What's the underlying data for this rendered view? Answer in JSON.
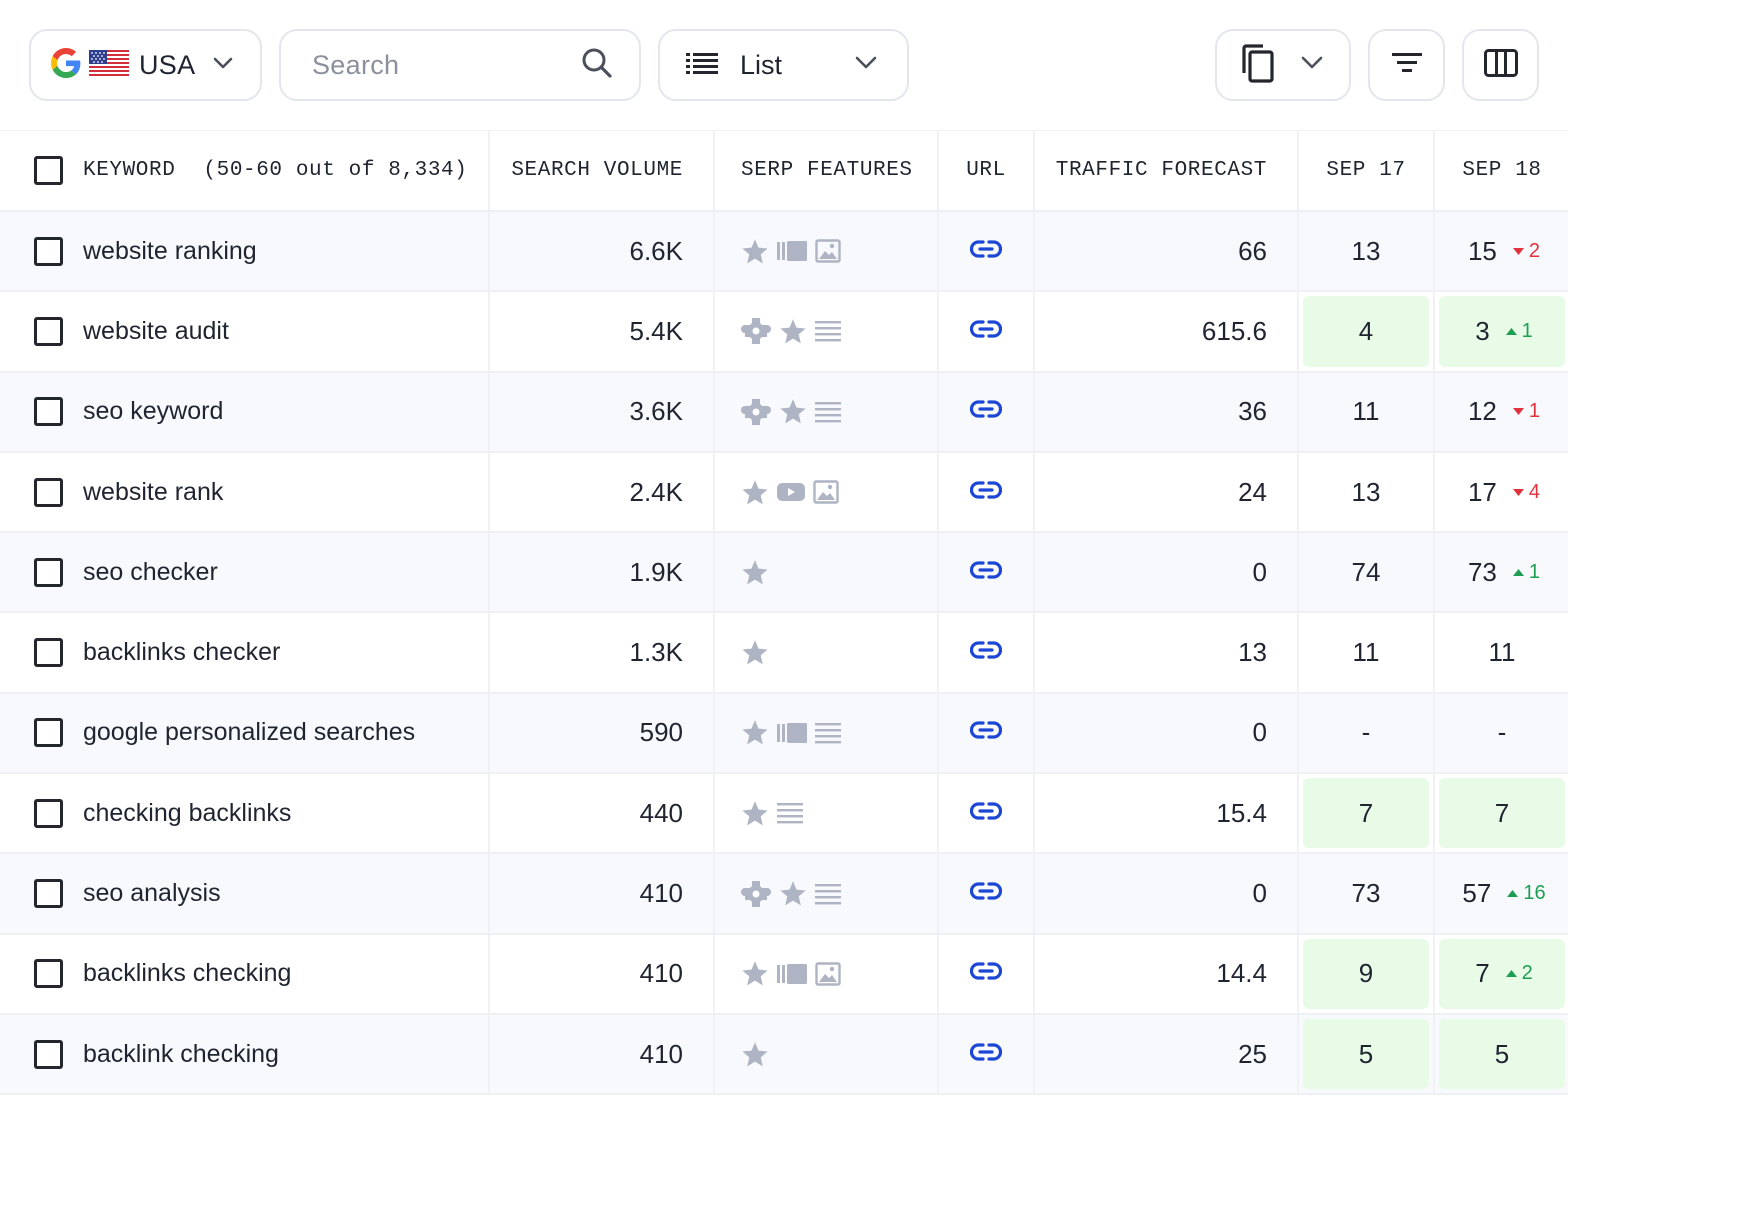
{
  "toolbar": {
    "country_label": "USA",
    "search_placeholder": "Search",
    "view_label": "List"
  },
  "colors": {
    "border": "#e3e6ec",
    "icon_gray": "#aeb4c3",
    "link_blue": "#1c47d6",
    "positive_bg": "#e8fbe7",
    "delta_up": "#1e9e52",
    "delta_down": "#e0323c"
  },
  "table": {
    "headers": {
      "keyword": "KEYWORD",
      "keyword_count": "(50-60 out of 8,334)",
      "search_volume": "SEARCH VOLUME",
      "serp_features": "SERP FEATURES",
      "url": "URL",
      "traffic_forecast": "TRAFFIC FORECAST",
      "sep17": "SEP 17",
      "sep18": "SEP 18"
    },
    "rows": [
      {
        "keyword": "website ranking",
        "volume": "6.6K",
        "serp": [
          "star-icon",
          "carousel-icon",
          "image-icon"
        ],
        "traffic": "66",
        "sep17": "13",
        "sep18": "15",
        "delta": "2",
        "delta_dir": "down",
        "hl17": false,
        "hl18": false
      },
      {
        "keyword": "website audit",
        "volume": "5.4K",
        "serp": [
          "puzzle-icon",
          "star-icon",
          "list-icon"
        ],
        "traffic": "615.6",
        "sep17": "4",
        "sep18": "3",
        "delta": "1",
        "delta_dir": "up",
        "hl17": true,
        "hl18": true
      },
      {
        "keyword": "seo keyword",
        "volume": "3.6K",
        "serp": [
          "puzzle-icon",
          "star-icon",
          "list-icon"
        ],
        "traffic": "36",
        "sep17": "11",
        "sep18": "12",
        "delta": "1",
        "delta_dir": "down",
        "hl17": false,
        "hl18": false
      },
      {
        "keyword": "website rank",
        "volume": "2.4K",
        "serp": [
          "star-icon",
          "video-icon",
          "image-icon"
        ],
        "traffic": "24",
        "sep17": "13",
        "sep18": "17",
        "delta": "4",
        "delta_dir": "down",
        "hl17": false,
        "hl18": false
      },
      {
        "keyword": "seo checker",
        "volume": "1.9K",
        "serp": [
          "star-icon"
        ],
        "traffic": "0",
        "sep17": "74",
        "sep18": "73",
        "delta": "1",
        "delta_dir": "up",
        "hl17": false,
        "hl18": false
      },
      {
        "keyword": "backlinks checker",
        "volume": "1.3K",
        "serp": [
          "star-icon"
        ],
        "traffic": "13",
        "sep17": "11",
        "sep18": "11",
        "delta": "",
        "delta_dir": "",
        "hl17": false,
        "hl18": false
      },
      {
        "keyword": "google personalized searches",
        "volume": "590",
        "serp": [
          "star-icon",
          "carousel-icon",
          "list-icon"
        ],
        "traffic": "0",
        "sep17": "-",
        "sep18": "-",
        "delta": "",
        "delta_dir": "",
        "hl17": false,
        "hl18": false
      },
      {
        "keyword": "checking backlinks",
        "volume": "440",
        "serp": [
          "star-icon",
          "list-icon"
        ],
        "traffic": "15.4",
        "sep17": "7",
        "sep18": "7",
        "delta": "",
        "delta_dir": "",
        "hl17": true,
        "hl18": true
      },
      {
        "keyword": "seo analysis",
        "volume": "410",
        "serp": [
          "puzzle-icon",
          "star-icon",
          "list-icon"
        ],
        "traffic": "0",
        "sep17": "73",
        "sep18": "57",
        "delta": "16",
        "delta_dir": "up",
        "hl17": false,
        "hl18": false
      },
      {
        "keyword": "backlinks checking",
        "volume": "410",
        "serp": [
          "star-icon",
          "carousel-icon",
          "image-icon"
        ],
        "traffic": "14.4",
        "sep17": "9",
        "sep18": "7",
        "delta": "2",
        "delta_dir": "up",
        "hl17": true,
        "hl18": true
      },
      {
        "keyword": "backlink checking",
        "volume": "410",
        "serp": [
          "star-icon"
        ],
        "traffic": "25",
        "sep17": "5",
        "sep18": "5",
        "delta": "",
        "delta_dir": "",
        "hl17": true,
        "hl18": true
      }
    ]
  }
}
